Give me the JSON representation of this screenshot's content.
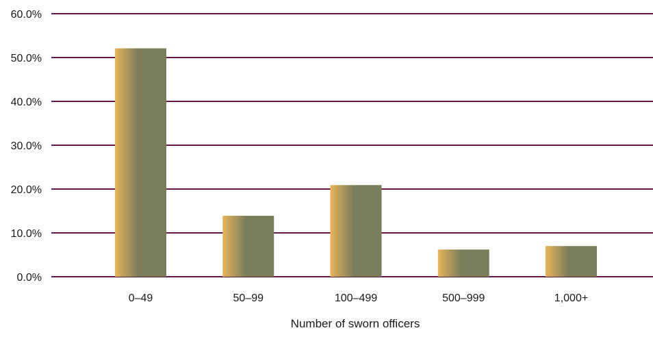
{
  "chart_data": {
    "type": "bar",
    "title": "",
    "xlabel": "Number of sworn officers",
    "ylabel": "",
    "categories": [
      "0–49",
      "50–99",
      "100–499",
      "500–999",
      "1,000+"
    ],
    "values": [
      52.1,
      13.9,
      20.9,
      6.2,
      7.0
    ],
    "ylim": [
      0,
      60
    ],
    "yticks": [
      "0.0%",
      "10.0%",
      "20.0%",
      "30.0%",
      "40.0%",
      "50.0%",
      "60.0%"
    ],
    "grid": true,
    "legend": "none",
    "colors": {
      "bar_light": "#e8b45a",
      "bar_dark": "#7a7d59",
      "gridline": "#5e1a44"
    }
  }
}
